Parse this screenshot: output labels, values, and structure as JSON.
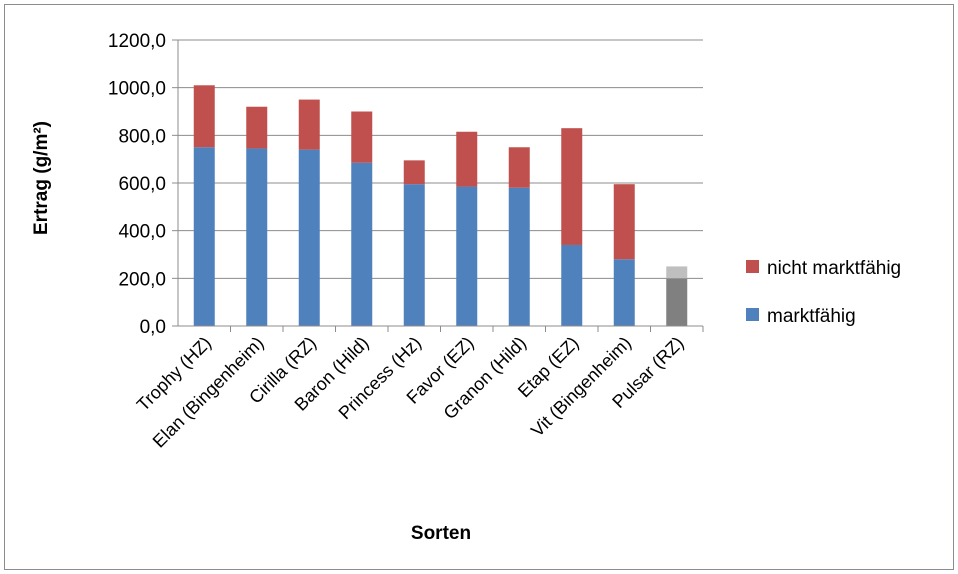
{
  "chart_data": {
    "type": "bar",
    "stacked": true,
    "title": "",
    "xlabel": "Sorten",
    "ylabel": "Ertrag (g/m²)",
    "ylim": [
      0,
      1200
    ],
    "yticks": [
      "0,0",
      "200,0",
      "400,0",
      "600,0",
      "800,0",
      "1000,0",
      "1200,0"
    ],
    "grid": true,
    "legend_position": "right",
    "categories": [
      "Trophy (HZ)",
      "Elan (Bingenheim)",
      "Cirilla (RZ)",
      "Baron (Hild)",
      "Princess (Hz)",
      "Favor (EZ)",
      "Granon (Hild)",
      "Etap (EZ)",
      "Vit (Bingenheim)",
      "Pulsar (RZ)"
    ],
    "series": [
      {
        "name": "marktfähig",
        "color": "#4f81bd",
        "values": [
          750,
          745,
          740,
          685,
          595,
          585,
          580,
          340,
          280,
          200
        ]
      },
      {
        "name": "nicht marktfähig",
        "color": "#c0504d",
        "values": [
          260,
          175,
          210,
          215,
          100,
          230,
          170,
          490,
          315,
          50
        ]
      }
    ],
    "highlight": {
      "category": "Pulsar (RZ)",
      "colors": {
        "marktfähig": "#808080",
        "nicht marktfähig": "#bfbfbf"
      }
    }
  }
}
